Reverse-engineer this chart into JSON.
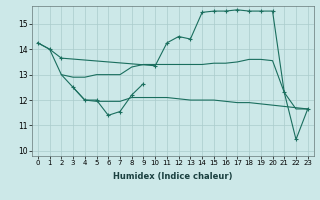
{
  "xlabel": "Humidex (Indice chaleur)",
  "bg_color": "#cce8e8",
  "grid_color": "#aacccc",
  "line_color": "#1a6e5e",
  "xlim": [
    -0.5,
    23.5
  ],
  "ylim": [
    9.8,
    15.7
  ],
  "yticks": [
    10,
    11,
    12,
    13,
    14,
    15
  ],
  "xticks": [
    0,
    1,
    2,
    3,
    4,
    5,
    6,
    7,
    8,
    9,
    10,
    11,
    12,
    13,
    14,
    15,
    16,
    17,
    18,
    19,
    20,
    21,
    22,
    23
  ],
  "line1_x": [
    0,
    1,
    2,
    10,
    11,
    12,
    13,
    14,
    15,
    16,
    17,
    18,
    19,
    20,
    21,
    22,
    23
  ],
  "line1_y": [
    14.25,
    14.0,
    13.65,
    13.35,
    14.25,
    14.5,
    14.4,
    15.45,
    15.5,
    15.5,
    15.55,
    15.5,
    15.5,
    15.5,
    12.3,
    10.45,
    11.65
  ],
  "line2_x": [
    0,
    1,
    2,
    3,
    4,
    5,
    6,
    7,
    8,
    9,
    10,
    11,
    12,
    13,
    14,
    15,
    16,
    17,
    18,
    19,
    20,
    21,
    22,
    23
  ],
  "line2_y": [
    14.25,
    14.0,
    13.0,
    12.9,
    12.9,
    13.0,
    13.0,
    13.0,
    13.3,
    13.4,
    13.4,
    13.4,
    13.4,
    13.4,
    13.4,
    13.45,
    13.45,
    13.5,
    13.6,
    13.6,
    13.55,
    12.3,
    11.65,
    11.65
  ],
  "line3_x": [
    2,
    3,
    4,
    5,
    6,
    7,
    8,
    9,
    10,
    11,
    12,
    13,
    14,
    15,
    16,
    17,
    18,
    19,
    20,
    21,
    22,
    23
  ],
  "line3_y": [
    13.0,
    12.5,
    12.0,
    11.95,
    11.95,
    11.95,
    12.1,
    12.1,
    12.1,
    12.1,
    12.05,
    12.0,
    12.0,
    12.0,
    11.95,
    11.9,
    11.9,
    11.85,
    11.8,
    11.75,
    11.7,
    11.65
  ],
  "line4_x": [
    3,
    4,
    5,
    6,
    7,
    8,
    9
  ],
  "line4_y": [
    12.5,
    12.0,
    12.0,
    11.4,
    11.55,
    12.2,
    12.65
  ]
}
